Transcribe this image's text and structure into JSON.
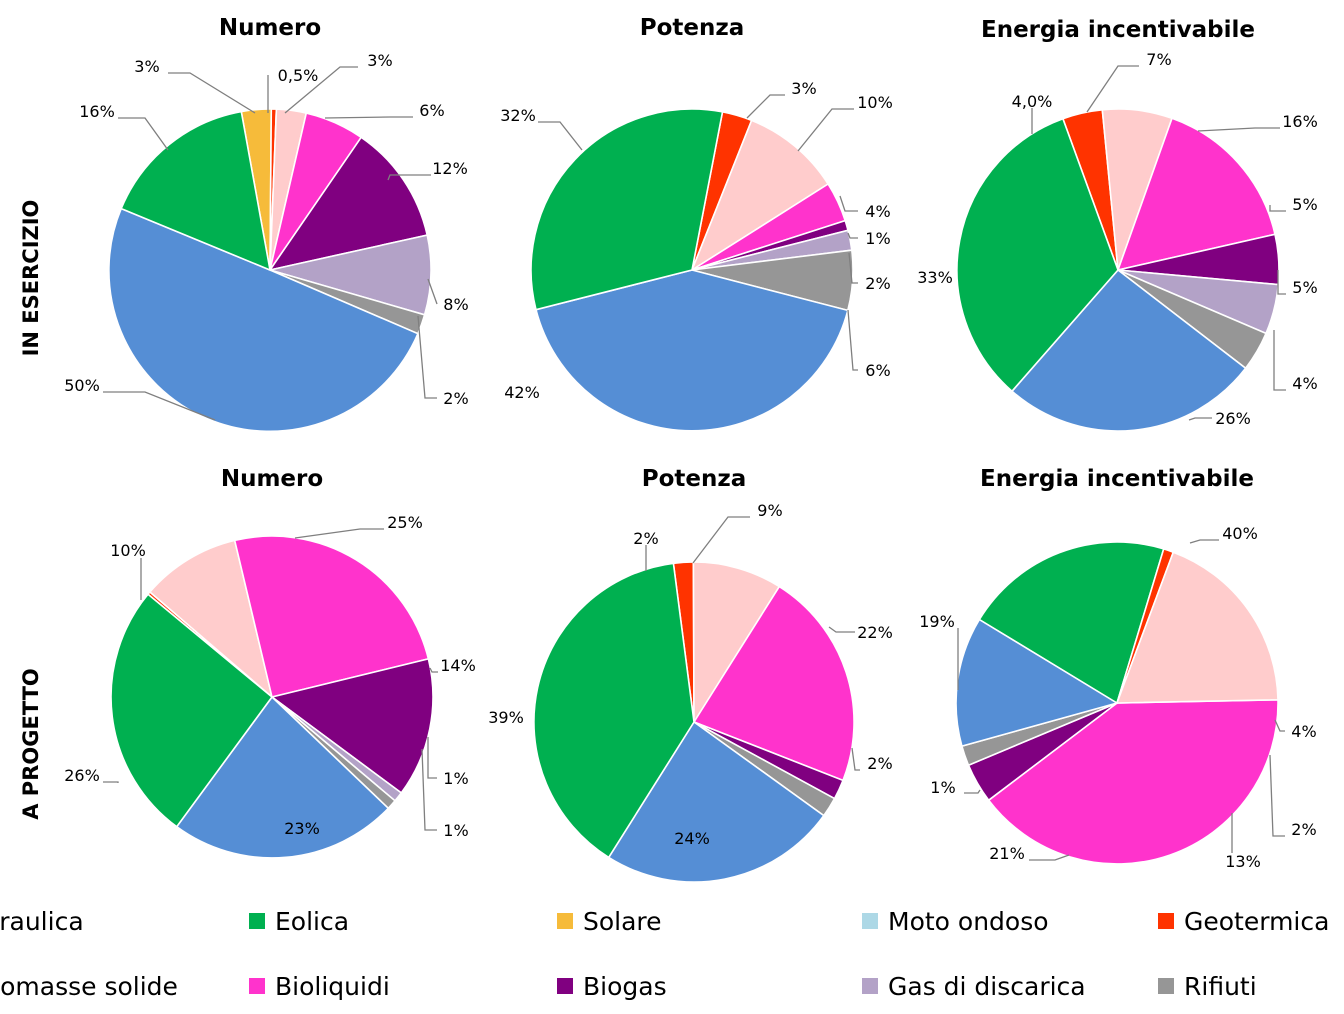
{
  "legend": [
    {
      "label": "Idraulica",
      "color": "#558ed5"
    },
    {
      "label": "Eolica",
      "color": "#00b050"
    },
    {
      "label": "Solare",
      "color": "#f6bb3a"
    },
    {
      "label": "Moto ondoso",
      "color": "#add8e6"
    },
    {
      "label": "Geotermica",
      "color": "#ff3300"
    },
    {
      "label": "Biomasse solide",
      "color": "#ffcccc"
    },
    {
      "label": "Bioliquidi",
      "color": "#ff33cc"
    },
    {
      "label": "Biogas",
      "color": "#800080"
    },
    {
      "label": "Gas di discarica",
      "color": "#b3a2c7"
    },
    {
      "label": "Rifiuti",
      "color": "#969696"
    }
  ],
  "rows": [
    "IN ESERCIZIO",
    "A PROGETTO"
  ],
  "chart_data": [
    {
      "type": "pie",
      "row": "IN ESERCIZIO",
      "title": "Numero",
      "categories": [
        "Idraulica",
        "Eolica",
        "Solare",
        "Moto ondoso",
        "Geotermica",
        "Biomasse solide",
        "Bioliquidi",
        "Biogas",
        "Gas di discarica",
        "Rifiuti"
      ],
      "values": [
        50,
        16,
        3,
        0,
        0.5,
        3,
        6,
        12,
        8,
        2
      ],
      "labels": [
        "50%",
        "16%",
        "3%",
        "",
        "0,5%",
        "3%",
        "6%",
        "12%",
        "8%",
        "2%"
      ]
    },
    {
      "type": "pie",
      "row": "IN ESERCIZIO",
      "title": "Potenza",
      "categories": [
        "Idraulica",
        "Eolica",
        "Solare",
        "Moto ondoso",
        "Geotermica",
        "Biomasse solide",
        "Bioliquidi",
        "Biogas",
        "Gas di discarica",
        "Rifiuti"
      ],
      "values": [
        42,
        32,
        0,
        0,
        3,
        10,
        4,
        1,
        2,
        6
      ],
      "labels": [
        "42%",
        "32%",
        "",
        "",
        "3%",
        "10%",
        "4%",
        "1%",
        "2%",
        "6%"
      ]
    },
    {
      "type": "pie",
      "row": "IN ESERCIZIO",
      "title": "Energia incentivabile",
      "categories": [
        "Idraulica",
        "Eolica",
        "Solare",
        "Moto ondoso",
        "Geotermica",
        "Biomasse solide",
        "Bioliquidi",
        "Biogas",
        "Gas di discarica",
        "Rifiuti"
      ],
      "values": [
        26,
        33,
        0,
        0,
        4.0,
        7,
        16,
        5,
        5,
        4
      ],
      "labels": [
        "26%",
        "33%",
        "",
        "",
        "4,0%",
        "7%",
        "16%",
        "5%",
        "5%",
        "4%"
      ]
    },
    {
      "type": "pie",
      "row": "A PROGETTO",
      "title": "Numero",
      "categories": [
        "Idraulica",
        "Eolica",
        "Solare",
        "Moto ondoso",
        "Geotermica",
        "Biomasse solide",
        "Bioliquidi",
        "Biogas",
        "Gas di discarica",
        "Rifiuti"
      ],
      "values": [
        23,
        26,
        0,
        0,
        0.3,
        10,
        25,
        14,
        1,
        1
      ],
      "labels": [
        "23%",
        "26%",
        "",
        "",
        "",
        "10%",
        "25%",
        "14%",
        "1%",
        "1%"
      ]
    },
    {
      "type": "pie",
      "row": "A PROGETTO",
      "title": "Potenza",
      "categories": [
        "Idraulica",
        "Eolica",
        "Solare",
        "Moto ondoso",
        "Geotermica",
        "Biomasse solide",
        "Bioliquidi",
        "Biogas",
        "Gas di discarica",
        "Rifiuti"
      ],
      "values": [
        24,
        39,
        0,
        0,
        2,
        9,
        22,
        2,
        0,
        2
      ],
      "labels": [
        "24%",
        "39%",
        "",
        "",
        "2%",
        "9%",
        "22%",
        "2%",
        "",
        "2%"
      ]
    },
    {
      "type": "pie",
      "row": "A PROGETTO",
      "title": "Energia incentivabile",
      "categories": [
        "Idraulica",
        "Eolica",
        "Solare",
        "Moto ondoso",
        "Geotermica",
        "Biomasse solide",
        "Bioliquidi",
        "Biogas",
        "Gas di discarica",
        "Rifiuti"
      ],
      "values": [
        13,
        21,
        0,
        0,
        1,
        19,
        40,
        4,
        0,
        2
      ],
      "labels": [
        "13%",
        "21%",
        "",
        "",
        "1%",
        "19%",
        "40%",
        "4%",
        "",
        "2%"
      ]
    }
  ]
}
